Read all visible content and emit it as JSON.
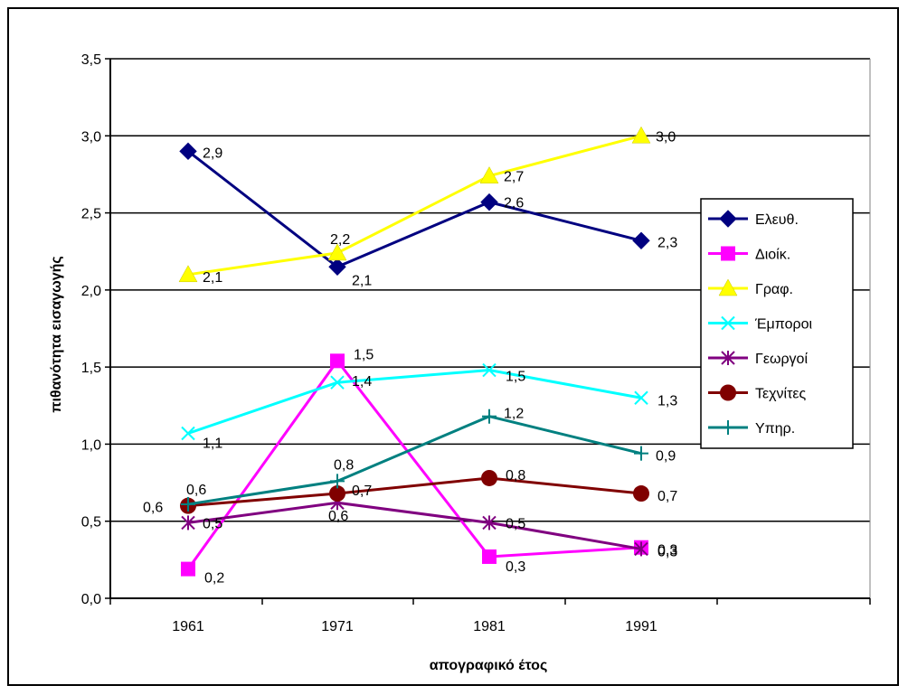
{
  "chart_data": {
    "type": "line",
    "title": "",
    "xlabel": "απογραφικό έτος",
    "ylabel": "πιθανότητα εισαγωγής",
    "categories": [
      "1961",
      "1971",
      "1981",
      "1991"
    ],
    "ylim": [
      0,
      3.5
    ],
    "yticks": [
      0,
      0.5,
      1.0,
      1.5,
      2.0,
      2.5,
      3.0,
      3.5
    ],
    "ytick_labels": [
      "0,0",
      "0,5",
      "1,0",
      "1,5",
      "2,0",
      "2,5",
      "3,0",
      "3,5"
    ],
    "grid": "horizontal",
    "legend_position": "right",
    "series": [
      {
        "name": "Ελευθ.",
        "color": "#000080",
        "marker": "diamond",
        "values": [
          2.9,
          2.15,
          2.57,
          2.32
        ],
        "labels": [
          "2,9",
          "2,1",
          "2,6",
          "2,3"
        ]
      },
      {
        "name": "Διοίκ.",
        "color": "#FF00FF",
        "marker": "square",
        "values": [
          0.19,
          1.54,
          0.27,
          0.33
        ],
        "labels": [
          "0,2",
          "1,5",
          "0,3",
          "0,3"
        ]
      },
      {
        "name": "Γραφ.",
        "color": "#FFFF00",
        "marker": "triangle",
        "values": [
          2.1,
          2.24,
          2.74,
          3.0
        ],
        "labels": [
          "2,1",
          "2,2",
          "2,7",
          "3,0"
        ]
      },
      {
        "name": "Έμποροι",
        "color": "#00FFFF",
        "marker": "x",
        "values": [
          1.07,
          1.4,
          1.48,
          1.3
        ],
        "labels": [
          "1,1",
          "1,4",
          "1,5",
          "1,3"
        ]
      },
      {
        "name": "Γεωργοί",
        "color": "#800080",
        "marker": "asterisk",
        "values": [
          0.49,
          0.62,
          0.49,
          0.32
        ],
        "labels": [
          "0,5",
          "0,6",
          "0,5",
          "0,3"
        ]
      },
      {
        "name": "Τεχνίτες",
        "color": "#800000",
        "marker": "circle",
        "values": [
          0.6,
          0.68,
          0.78,
          0.68
        ],
        "labels": [
          "0,6",
          "0,7",
          "0,8",
          "0,7"
        ]
      },
      {
        "name": "Υπηρ.",
        "color": "#008080",
        "marker": "plus",
        "values": [
          0.61,
          0.76,
          1.18,
          0.94
        ],
        "labels": [
          "0,6",
          "0,8",
          "1,2",
          "0,9"
        ]
      }
    ]
  }
}
